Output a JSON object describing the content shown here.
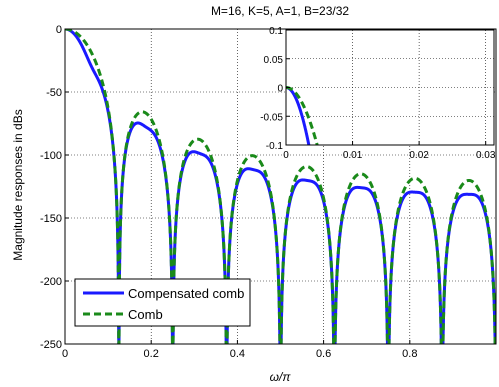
{
  "chart_data": [
    {
      "type": "line",
      "title": "M=16, K=5, A=1, B=23/32",
      "xlabel": "ω/π",
      "ylabel": "Magnitude responses in dBs",
      "xlim": [
        0,
        1
      ],
      "ylim": [
        -250,
        0
      ],
      "xticks": [
        "0",
        "0.2",
        "0.4",
        "0.6",
        "0.8"
      ],
      "yticks": [
        "0",
        "-50",
        "-100",
        "-150",
        "-200",
        "-250"
      ],
      "grid": true,
      "legend_position": "bottom-left",
      "params": {
        "M": 16,
        "K": 5,
        "B": 0.71875
      },
      "series": [
        {
          "name": "Compensated comb",
          "color": "#1a1aff",
          "style": "solid",
          "compensated": true
        },
        {
          "name": "Comb",
          "color": "#1a8a1a",
          "style": "dashed",
          "compensated": false
        }
      ]
    },
    {
      "type": "line",
      "inset": true,
      "xlim": [
        0,
        0.03125
      ],
      "ylim": [
        -0.1,
        0.1
      ],
      "xticks": [
        "0",
        "0.01",
        "0.02",
        "0.03"
      ],
      "yticks": [
        "0.1",
        "0.05",
        "0",
        "-0.05",
        "-0.1"
      ],
      "grid": true
    }
  ]
}
